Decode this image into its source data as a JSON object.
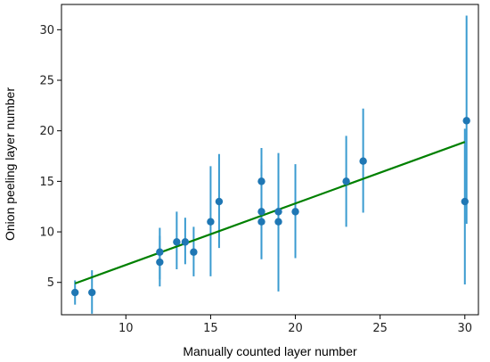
{
  "chart_data": {
    "type": "scatter",
    "title": "",
    "xlabel": "Manually counted layer number",
    "ylabel": "Onion peeling layer number",
    "xlim": [
      6.2,
      30.8
    ],
    "ylim": [
      1.8,
      32.5
    ],
    "xticks": [
      10,
      15,
      20,
      25,
      30
    ],
    "yticks": [
      5,
      10,
      15,
      20,
      25,
      30
    ],
    "grid": false,
    "legend": "none",
    "colors": {
      "points": "#1f77b4",
      "errorbars": "#3a9bd0",
      "fit_line": "#008000",
      "axes": "#000000"
    },
    "series": [
      {
        "type": "scatter_errorbar",
        "points": [
          {
            "x": 7.0,
            "y": 4.0,
            "ylow": 2.8,
            "yhigh": 5.2
          },
          {
            "x": 8.0,
            "y": 4.0,
            "ylow": 1.9,
            "yhigh": 6.2
          },
          {
            "x": 12.0,
            "y": 8.0,
            "ylow": 5.3,
            "yhigh": 10.4
          },
          {
            "x": 12.0,
            "y": 7.0,
            "ylow": 4.6,
            "yhigh": 9.6
          },
          {
            "x": 13.0,
            "y": 9.0,
            "ylow": 6.3,
            "yhigh": 12.0
          },
          {
            "x": 13.5,
            "y": 9.0,
            "ylow": 6.8,
            "yhigh": 11.4
          },
          {
            "x": 14.0,
            "y": 8.0,
            "ylow": 5.6,
            "yhigh": 10.5
          },
          {
            "x": 15.0,
            "y": 11.0,
            "ylow": 5.6,
            "yhigh": 16.5
          },
          {
            "x": 15.5,
            "y": 13.0,
            "ylow": 8.4,
            "yhigh": 17.7
          },
          {
            "x": 18.0,
            "y": 15.0,
            "ylow": 7.3,
            "yhigh": 18.3
          },
          {
            "x": 18.0,
            "y": 12.0,
            "ylow": 7.3,
            "yhigh": 16.6
          },
          {
            "x": 18.0,
            "y": 11.0,
            "ylow": 7.3,
            "yhigh": 16.6
          },
          {
            "x": 19.0,
            "y": 12.0,
            "ylow": 4.1,
            "yhigh": 17.8
          },
          {
            "x": 19.0,
            "y": 11.0,
            "ylow": 7.5,
            "yhigh": 15.6
          },
          {
            "x": 20.0,
            "y": 12.0,
            "ylow": 7.4,
            "yhigh": 16.7
          },
          {
            "x": 23.0,
            "y": 15.0,
            "ylow": 10.5,
            "yhigh": 19.5
          },
          {
            "x": 24.0,
            "y": 17.0,
            "ylow": 11.9,
            "yhigh": 22.2
          },
          {
            "x": 30.0,
            "y": 13.0,
            "ylow": 4.8,
            "yhigh": 20.2
          },
          {
            "x": 30.1,
            "y": 21.0,
            "ylow": 10.8,
            "yhigh": 31.4
          }
        ]
      },
      {
        "type": "line",
        "x": [
          7.0,
          30.0
        ],
        "y": [
          4.9,
          18.9
        ]
      }
    ]
  }
}
